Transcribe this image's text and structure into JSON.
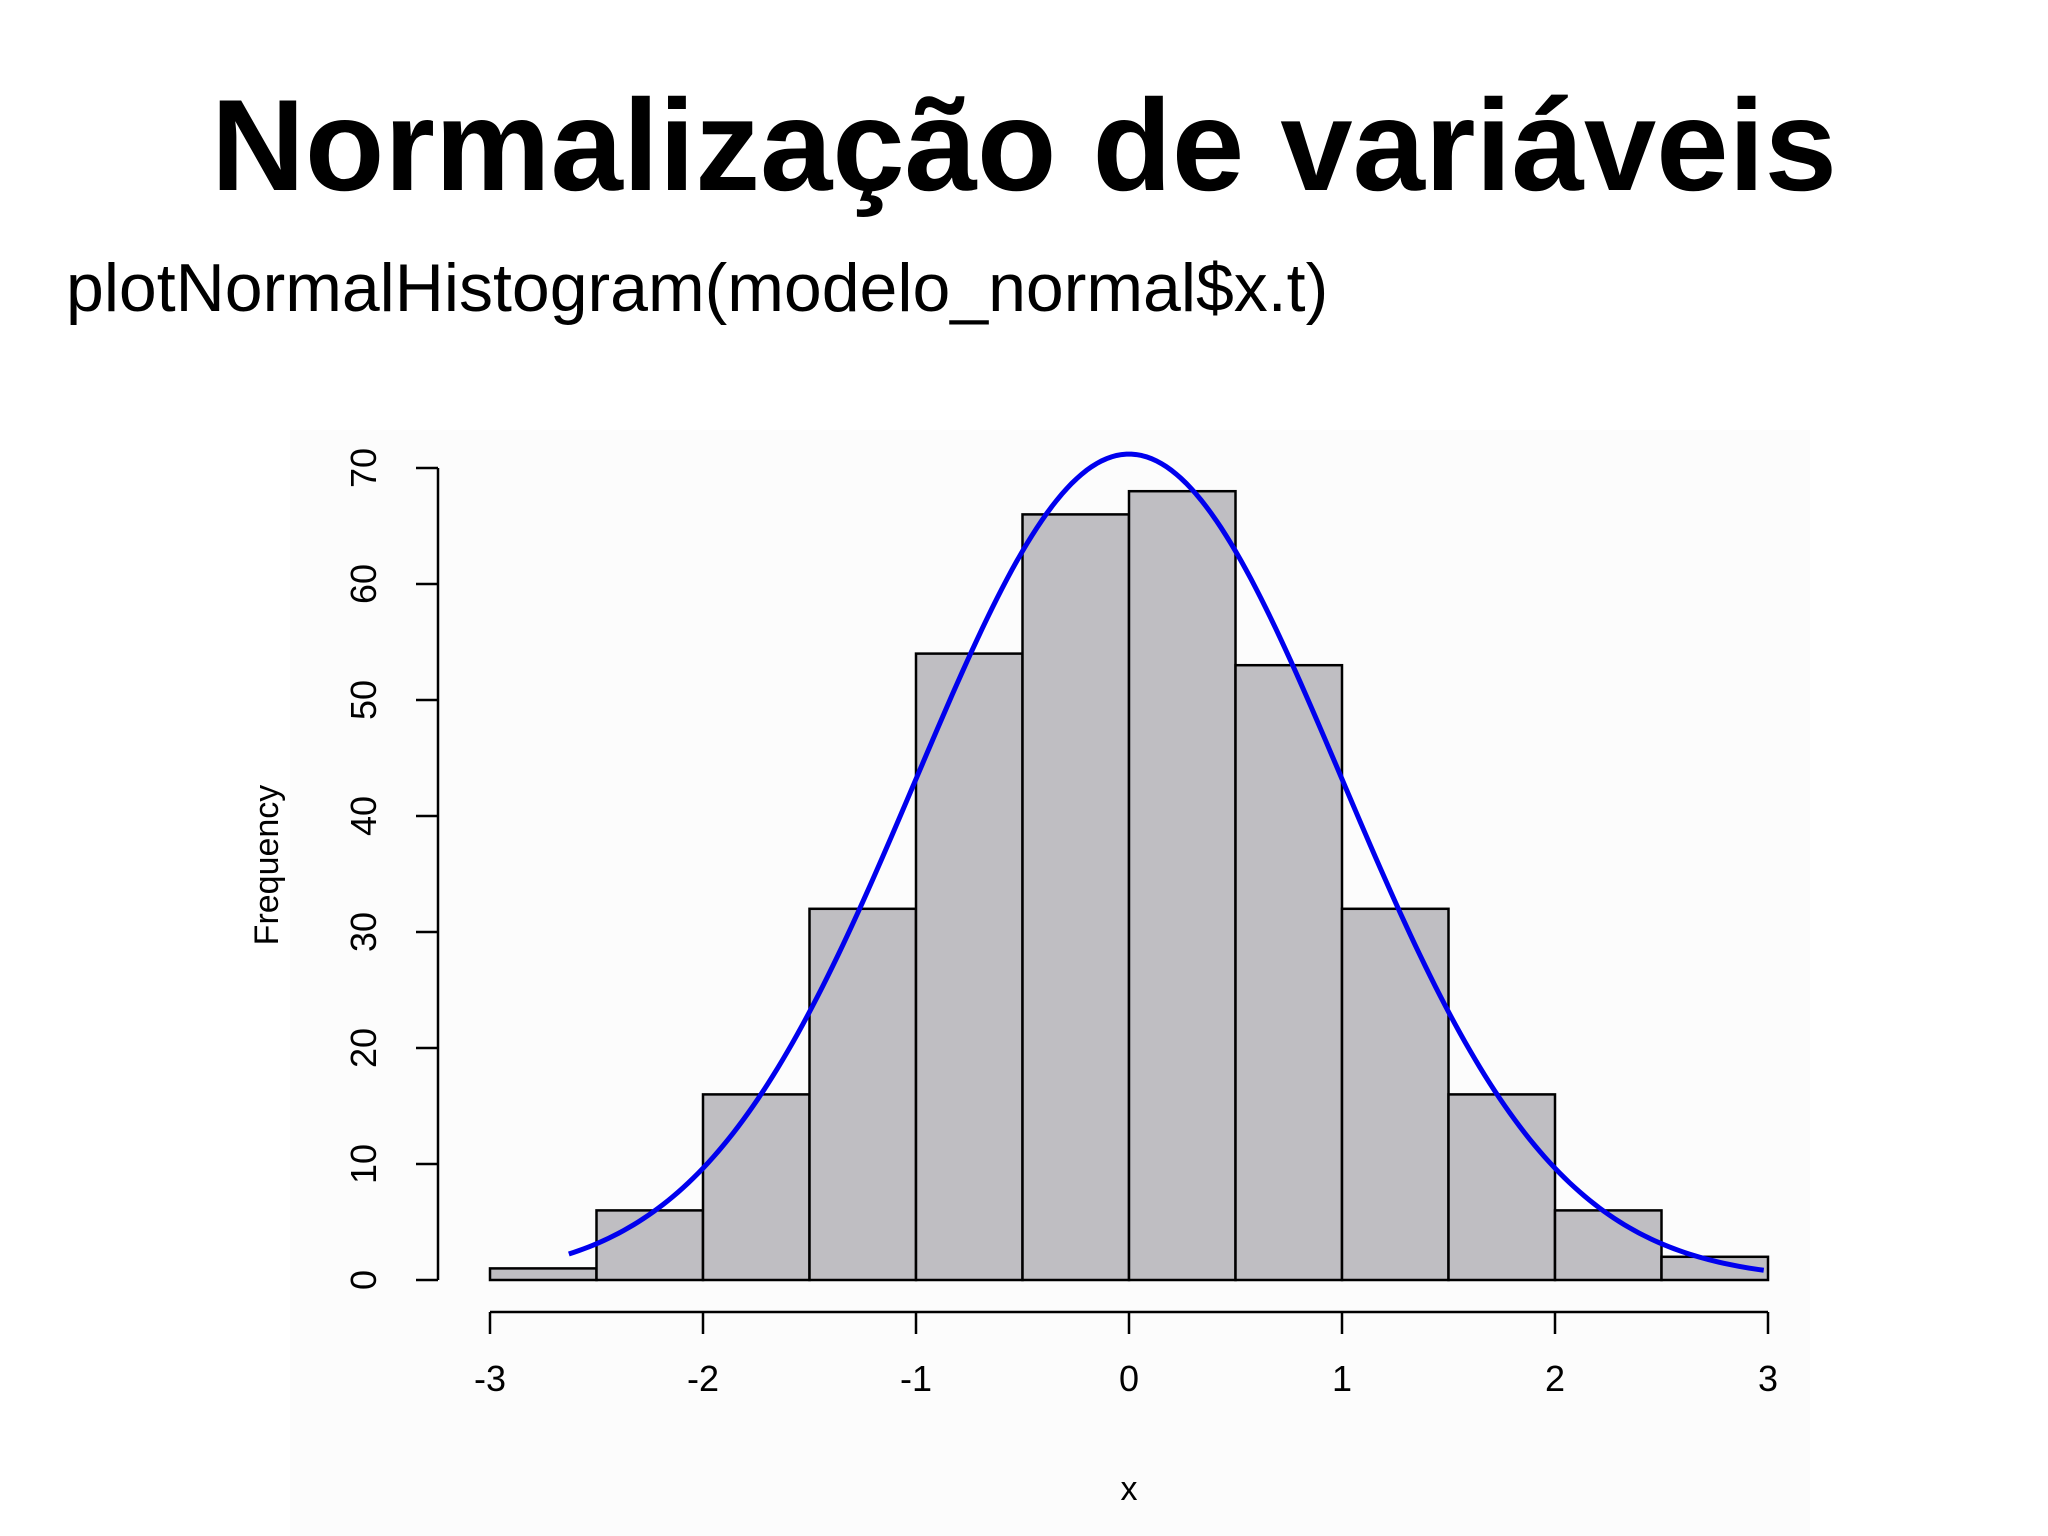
{
  "slide": {
    "title": "Normalização de variáveis",
    "subtitle": "plotNormalHistogram(modelo_normal$x.t)"
  },
  "chart_data": {
    "type": "bar",
    "title": "",
    "xlabel": "x",
    "ylabel": "Frequency",
    "bins": [
      {
        "x0": -3.0,
        "x1": -2.5,
        "count": 1
      },
      {
        "x0": -2.5,
        "x1": -2.0,
        "count": 6
      },
      {
        "x0": -2.0,
        "x1": -1.5,
        "count": 16
      },
      {
        "x0": -1.5,
        "x1": -1.0,
        "count": 32
      },
      {
        "x0": -1.0,
        "x1": -0.5,
        "count": 54
      },
      {
        "x0": -0.5,
        "x1": 0.0,
        "count": 66
      },
      {
        "x0": 0.0,
        "x1": 0.5,
        "count": 68
      },
      {
        "x0": 0.5,
        "x1": 1.0,
        "count": 53
      },
      {
        "x0": 1.0,
        "x1": 1.5,
        "count": 32
      },
      {
        "x0": 1.5,
        "x1": 2.0,
        "count": 16
      },
      {
        "x0": 2.0,
        "x1": 2.5,
        "count": 6
      },
      {
        "x0": 2.5,
        "x1": 3.0,
        "count": 2
      }
    ],
    "normal_curve": {
      "mean": 0.0,
      "sd": 1.0,
      "peak": 71.2,
      "x_from": -2.63,
      "x_to": 2.98
    },
    "xlim": [
      -3,
      3
    ],
    "ylim": [
      0,
      70
    ],
    "x_ticks": [
      "-3",
      "-2",
      "-1",
      "0",
      "1",
      "2",
      "3"
    ],
    "y_ticks": [
      "0",
      "10",
      "20",
      "30",
      "40",
      "50",
      "60",
      "70"
    ],
    "bar_color": "#bfbec2",
    "bar_edge_color": "#000000",
    "curve_color": "#0000ee",
    "grid": false
  }
}
